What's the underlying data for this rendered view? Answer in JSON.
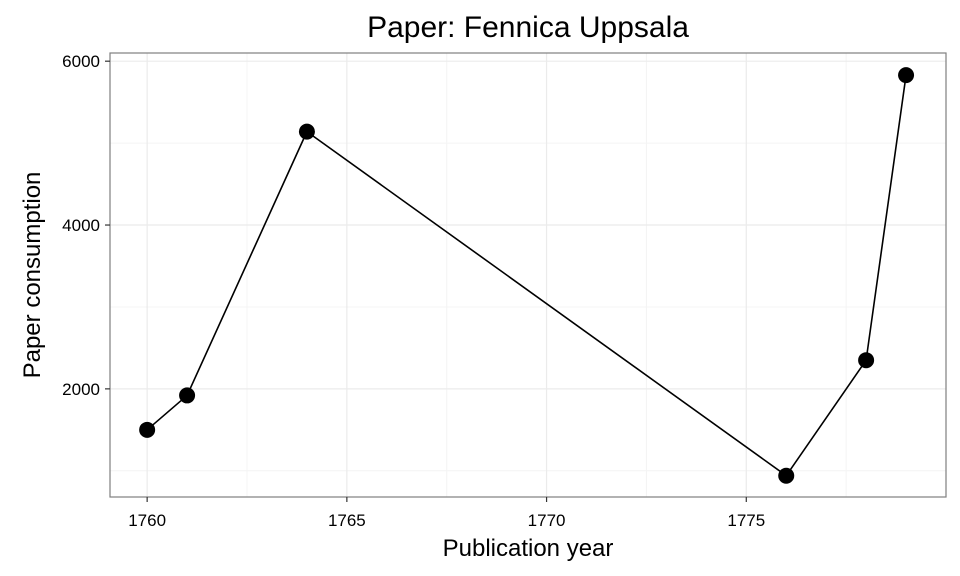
{
  "chart_data": {
    "type": "line",
    "title": "Paper: Fennica Uppsala",
    "xlabel": "Publication year",
    "ylabel": "Paper consumption",
    "x": [
      1760,
      1761,
      1764,
      1776,
      1778,
      1779
    ],
    "y": [
      1500,
      1920,
      5140,
      940,
      2350,
      5830
    ],
    "x_ticks": [
      1760,
      1765,
      1770,
      1775
    ],
    "y_ticks": [
      2000,
      4000,
      6000
    ],
    "xlim": [
      1759.07,
      1780.0
    ],
    "ylim": [
      680,
      6100
    ],
    "grid": true,
    "legend": "none",
    "colors": {
      "line": "#000000",
      "point": "#000000",
      "grid_major": "#ebebeb",
      "grid_minor": "#f4f4f4",
      "panel_border": "#7f7f7f",
      "background": "#ffffff"
    }
  }
}
